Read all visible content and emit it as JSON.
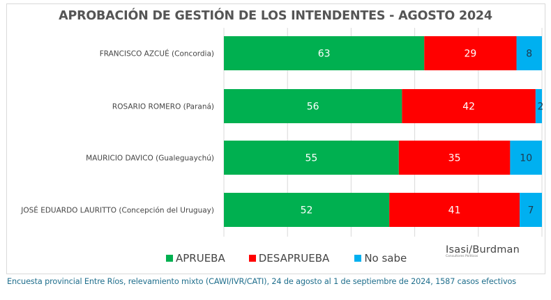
{
  "chart_data": {
    "type": "bar",
    "orientation": "horizontal",
    "stacked": true,
    "title": "APROBACIÓN DE GESTIÓN DE LOS INTENDENTES - AGOSTO 2024",
    "xlabel": "",
    "ylabel": "",
    "xlim": [
      0,
      100
    ],
    "grid": true,
    "gridlines": [
      0,
      20,
      40,
      60,
      80,
      100
    ],
    "legend_position": "bottom",
    "categories": [
      "FRANCISCO AZCUÉ (Concordia)",
      "ROSARIO ROMERO (Paraná)",
      "MAURICIO DAVICO (Gualeguaychú)",
      "JOSÉ EDUARDO LAURITTO (Concepción del Uruguay)"
    ],
    "series": [
      {
        "name": "APRUEBA",
        "color": "#00b050",
        "label_color": "#ffffff",
        "values": [
          63,
          56,
          55,
          52
        ]
      },
      {
        "name": "DESAPRUEBA",
        "color": "#ff0000",
        "label_color": "#ffffff",
        "values": [
          29,
          42,
          35,
          41
        ]
      },
      {
        "name": "No sabe",
        "color": "#00b0f0",
        "label_color": "#1f3a4d",
        "values": [
          8,
          2,
          10,
          7
        ]
      }
    ]
  },
  "logo": {
    "name": "Isasi/Burdman",
    "subtitle": "Consultores Políticos"
  },
  "footnote": "Encuesta provincial Entre Ríos, relevamiento mixto (CAWI/IVR/CATI), 24 de agosto al 1 de septiembre de 2024, 1587 casos efectivos"
}
